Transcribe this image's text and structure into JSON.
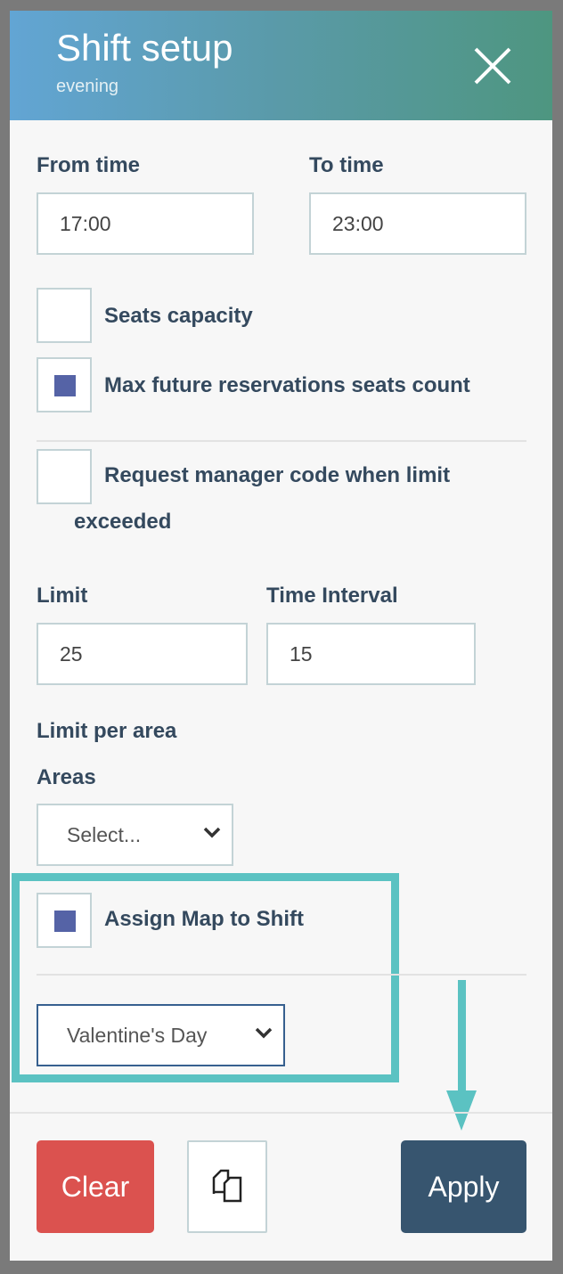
{
  "header": {
    "title": "Shift setup",
    "subtitle": "evening"
  },
  "form": {
    "from_time_label": "From time",
    "from_time_value": "17:00",
    "to_time_label": "To time",
    "to_time_value": "23:00",
    "seats_capacity_label": "Seats capacity",
    "seats_capacity_checked": false,
    "max_future_label": "Max future reservations seats count",
    "max_future_checked": true,
    "request_code_label_1": "Request manager code when limit",
    "request_code_label_2": "exceeded",
    "request_code_checked": false,
    "limit_label": "Limit",
    "limit_value": "25",
    "interval_label": "Time Interval",
    "interval_value": "15",
    "limit_per_area_label": "Limit per area",
    "areas_label": "Areas",
    "areas_value": "Select...",
    "assign_map_label": "Assign Map to Shift",
    "assign_map_checked": true,
    "map_value": "Valentine's Day"
  },
  "footer": {
    "clear_label": "Clear",
    "apply_label": "Apply",
    "copy_icon": "copy-icon"
  },
  "colors": {
    "highlight": "#5bc2c2",
    "clear": "#db524f",
    "apply": "#37556f",
    "checkbox": "#5563a6"
  }
}
